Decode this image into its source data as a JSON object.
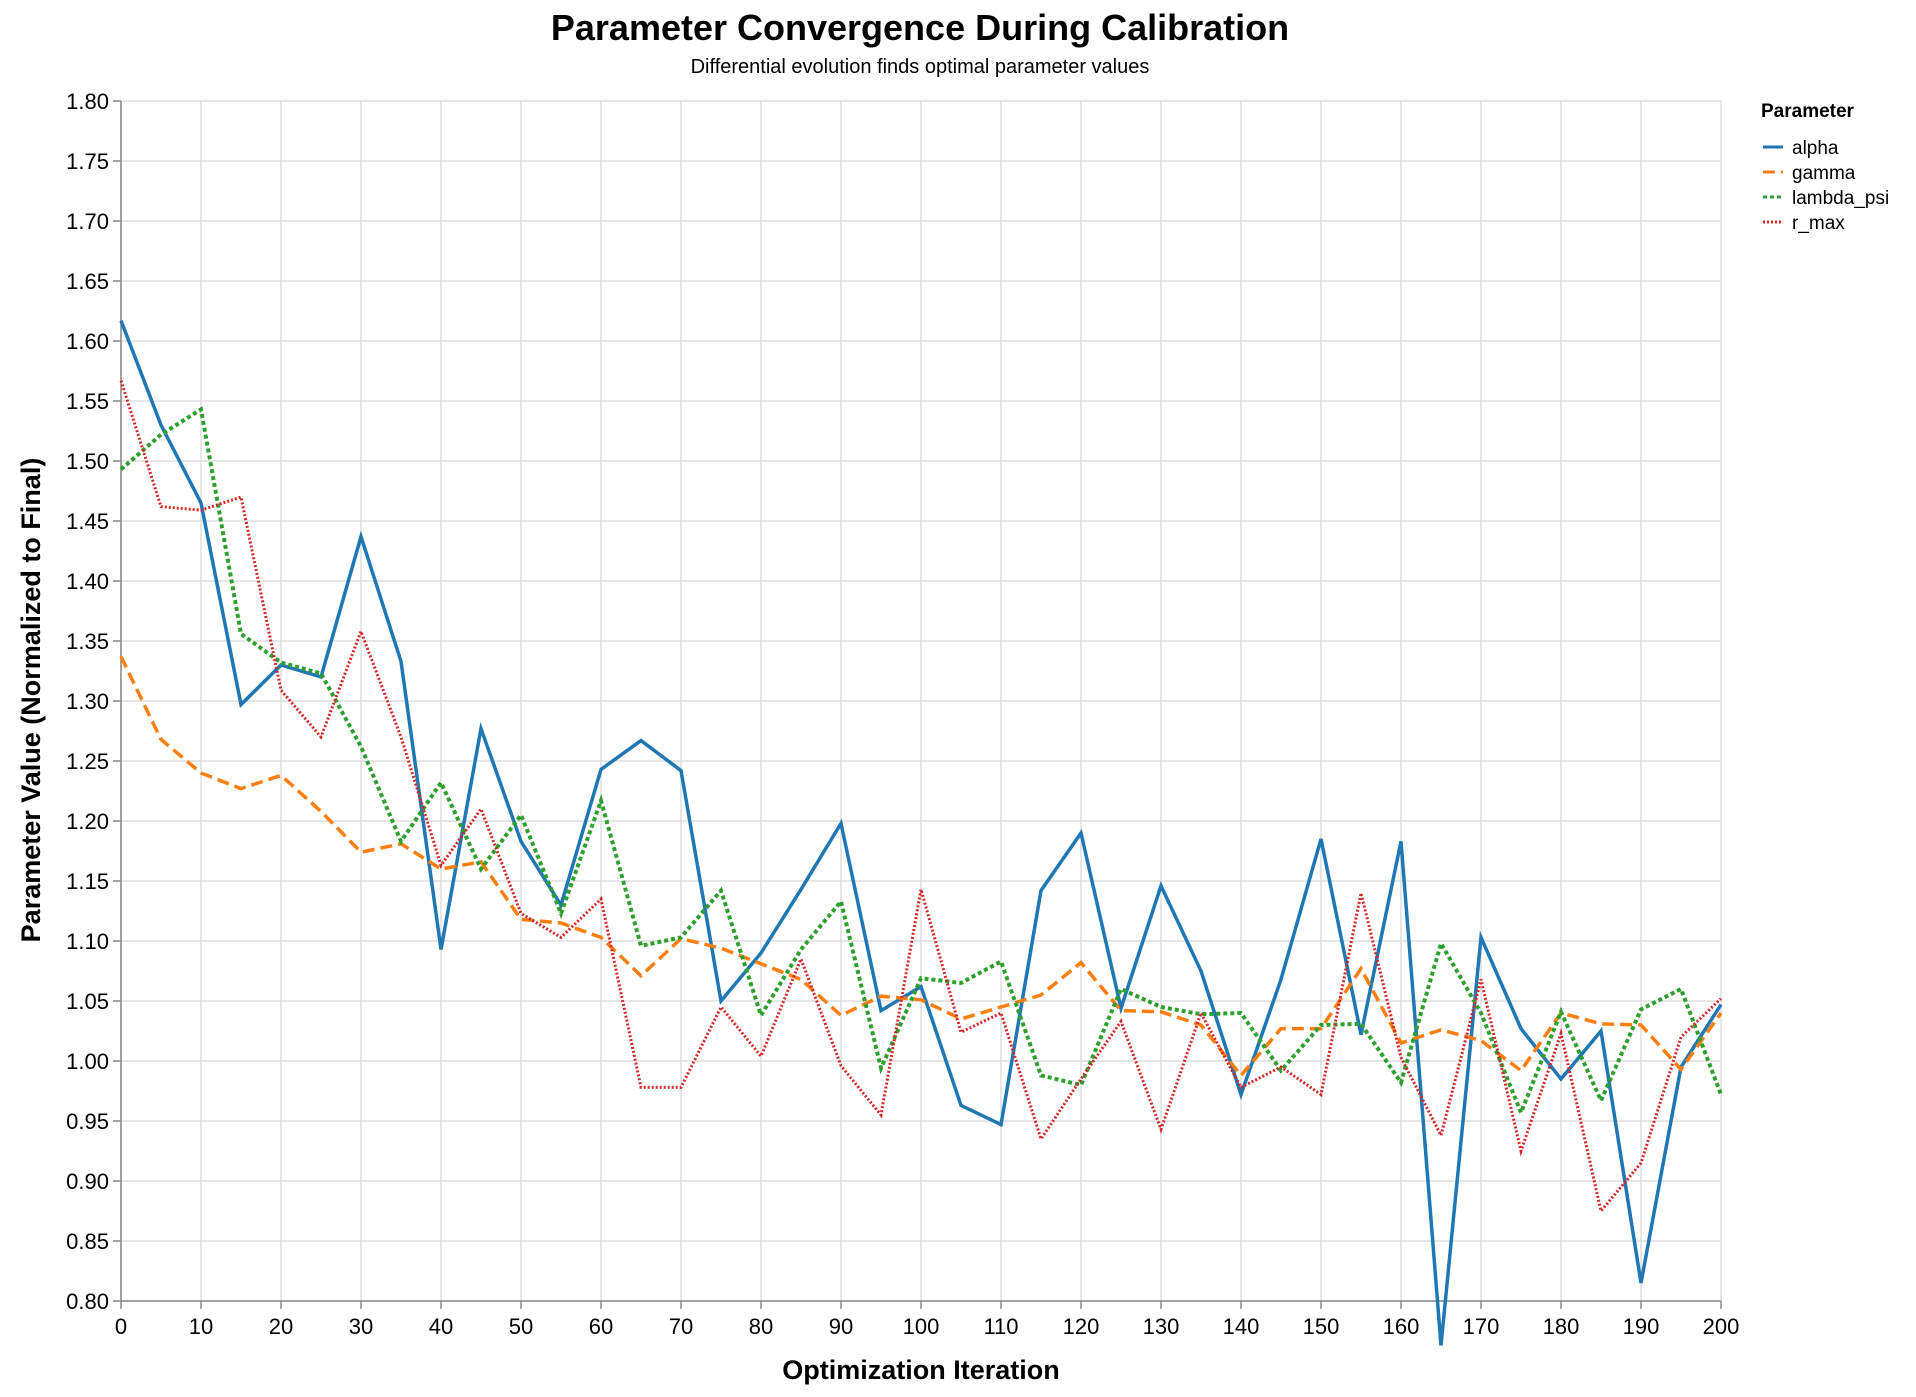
{
  "chart_data": {
    "type": "line",
    "title": "Parameter Convergence During Calibration",
    "subtitle": "Differential evolution finds optimal parameter values",
    "xlabel": "Optimization Iteration",
    "ylabel": "Parameter Value (Normalized to Final)",
    "xlim": [
      0,
      200
    ],
    "ylim": [
      0.8,
      1.8
    ],
    "x_ticks": [
      0,
      10,
      20,
      30,
      40,
      50,
      60,
      70,
      80,
      90,
      100,
      110,
      120,
      130,
      140,
      150,
      160,
      170,
      180,
      190,
      200
    ],
    "y_ticks": [
      0.8,
      0.85,
      0.9,
      0.95,
      1.0,
      1.05,
      1.1,
      1.15,
      1.2,
      1.25,
      1.3,
      1.35,
      1.4,
      1.45,
      1.5,
      1.55,
      1.6,
      1.65,
      1.7,
      1.75,
      1.8
    ],
    "grid": true,
    "legend": {
      "title": "Parameter",
      "position": "top-right"
    },
    "x": [
      0,
      5,
      10,
      15,
      20,
      25,
      30,
      35,
      40,
      45,
      50,
      55,
      60,
      65,
      70,
      75,
      80,
      85,
      90,
      95,
      100,
      105,
      110,
      115,
      120,
      125,
      130,
      135,
      140,
      145,
      150,
      155,
      160,
      165,
      170,
      175,
      180,
      185,
      190,
      195,
      200
    ],
    "series": [
      {
        "name": "alpha",
        "color": "#1f77b4",
        "dash": "solid",
        "values": [
          1.617,
          1.53,
          1.465,
          1.297,
          1.33,
          1.32,
          1.437,
          1.333,
          1.093,
          1.277,
          1.183,
          1.13,
          1.243,
          1.267,
          1.242,
          1.05,
          1.09,
          1.143,
          1.198,
          1.042,
          1.062,
          0.963,
          0.947,
          1.142,
          1.19,
          1.044,
          1.146,
          1.075,
          0.972,
          1.068,
          1.185,
          1.022,
          1.183,
          0.763,
          1.103,
          1.027,
          0.985,
          1.025,
          0.815,
          0.995,
          1.047
        ]
      },
      {
        "name": "gamma",
        "color": "#ff7f0e",
        "dash": "dashed",
        "values": [
          1.337,
          1.268,
          1.24,
          1.227,
          1.238,
          1.208,
          1.174,
          1.181,
          1.16,
          1.166,
          1.118,
          1.115,
          1.103,
          1.071,
          1.102,
          1.094,
          1.081,
          1.068,
          1.038,
          1.054,
          1.051,
          1.035,
          1.045,
          1.055,
          1.082,
          1.042,
          1.041,
          1.03,
          0.988,
          1.027,
          1.027,
          1.077,
          1.015,
          1.026,
          1.017,
          0.992,
          1.04,
          1.031,
          1.03,
          0.993,
          1.04
        ]
      },
      {
        "name": "lambda_psi",
        "color": "#2ca02c",
        "dash": "dotted",
        "values": [
          1.493,
          1.522,
          1.543,
          1.356,
          1.332,
          1.323,
          1.262,
          1.183,
          1.232,
          1.16,
          1.205,
          1.123,
          1.217,
          1.096,
          1.103,
          1.142,
          1.038,
          1.093,
          1.133,
          0.994,
          1.069,
          1.065,
          1.083,
          0.988,
          0.98,
          1.06,
          1.045,
          1.039,
          1.04,
          0.992,
          1.03,
          1.031,
          0.982,
          1.098,
          1.04,
          0.957,
          1.041,
          0.967,
          1.043,
          1.06,
          0.972
        ]
      },
      {
        "name": "r_max",
        "color": "#d62728",
        "dash": "fine-dotted",
        "values": [
          1.567,
          1.462,
          1.459,
          1.47,
          1.309,
          1.27,
          1.358,
          1.27,
          1.163,
          1.21,
          1.123,
          1.103,
          1.135,
          0.978,
          0.978,
          1.045,
          1.004,
          1.085,
          0.996,
          0.955,
          1.143,
          1.024,
          1.04,
          0.935,
          0.985,
          1.033,
          0.943,
          1.04,
          0.978,
          0.995,
          0.972,
          1.14,
          1.003,
          0.938,
          1.068,
          0.925,
          1.023,
          0.875,
          0.915,
          1.02,
          1.052
        ]
      }
    ]
  }
}
